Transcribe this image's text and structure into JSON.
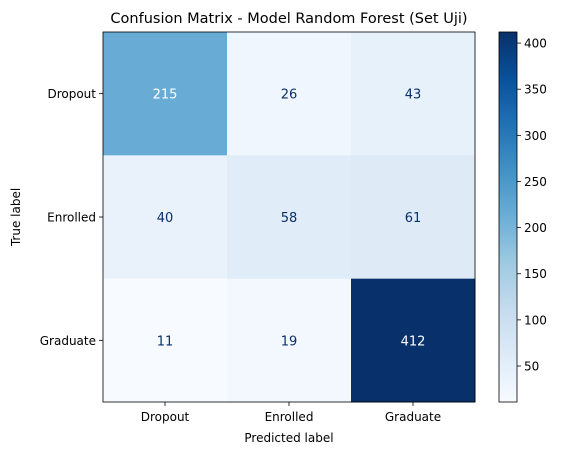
{
  "chart_data": {
    "type": "heatmap",
    "title": "Confusion Matrix - Model Random Forest (Set Uji)",
    "xlabel": "Predicted label",
    "ylabel": "True label",
    "x_categories": [
      "Dropout",
      "Enrolled",
      "Graduate"
    ],
    "y_categories": [
      "Dropout",
      "Enrolled",
      "Graduate"
    ],
    "matrix": [
      [
        215,
        26,
        43
      ],
      [
        40,
        58,
        61
      ],
      [
        11,
        19,
        412
      ]
    ],
    "colormap": "Blues",
    "color_range": [
      11,
      412
    ],
    "colorbar_ticks": [
      50,
      100,
      150,
      200,
      250,
      300,
      350,
      400
    ],
    "grid": false
  }
}
